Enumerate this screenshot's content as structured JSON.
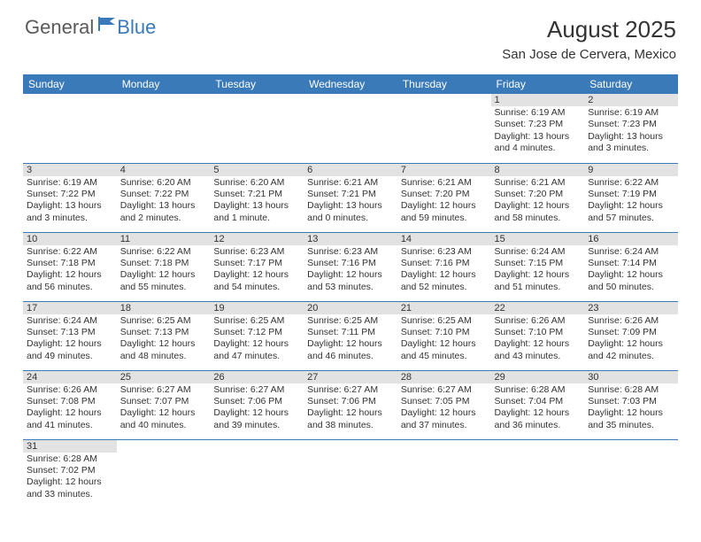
{
  "brand": {
    "general": "General",
    "blue": "Blue"
  },
  "title": "August 2025",
  "location": "San Jose de Cervera, Mexico",
  "colors": {
    "header_bg": "#3a7ab8",
    "header_text": "#ffffff",
    "daynum_bg": "#e2e2e2",
    "border": "#3a7ab8",
    "body_text": "#333333",
    "page_bg": "#ffffff",
    "logo_gray": "#5a5a5a",
    "logo_blue": "#3a7ab8"
  },
  "typography": {
    "title_fontsize": 26,
    "location_fontsize": 15,
    "weekday_fontsize": 12,
    "daynum_fontsize": 11,
    "body_fontsize": 10.5
  },
  "weekdays": [
    "Sunday",
    "Monday",
    "Tuesday",
    "Wednesday",
    "Thursday",
    "Friday",
    "Saturday"
  ],
  "weeks": [
    [
      null,
      null,
      null,
      null,
      null,
      {
        "n": "1",
        "sr": "Sunrise: 6:19 AM",
        "ss": "Sunset: 7:23 PM",
        "dl": "Daylight: 13 hours and 4 minutes."
      },
      {
        "n": "2",
        "sr": "Sunrise: 6:19 AM",
        "ss": "Sunset: 7:23 PM",
        "dl": "Daylight: 13 hours and 3 minutes."
      }
    ],
    [
      {
        "n": "3",
        "sr": "Sunrise: 6:19 AM",
        "ss": "Sunset: 7:22 PM",
        "dl": "Daylight: 13 hours and 3 minutes."
      },
      {
        "n": "4",
        "sr": "Sunrise: 6:20 AM",
        "ss": "Sunset: 7:22 PM",
        "dl": "Daylight: 13 hours and 2 minutes."
      },
      {
        "n": "5",
        "sr": "Sunrise: 6:20 AM",
        "ss": "Sunset: 7:21 PM",
        "dl": "Daylight: 13 hours and 1 minute."
      },
      {
        "n": "6",
        "sr": "Sunrise: 6:21 AM",
        "ss": "Sunset: 7:21 PM",
        "dl": "Daylight: 13 hours and 0 minutes."
      },
      {
        "n": "7",
        "sr": "Sunrise: 6:21 AM",
        "ss": "Sunset: 7:20 PM",
        "dl": "Daylight: 12 hours and 59 minutes."
      },
      {
        "n": "8",
        "sr": "Sunrise: 6:21 AM",
        "ss": "Sunset: 7:20 PM",
        "dl": "Daylight: 12 hours and 58 minutes."
      },
      {
        "n": "9",
        "sr": "Sunrise: 6:22 AM",
        "ss": "Sunset: 7:19 PM",
        "dl": "Daylight: 12 hours and 57 minutes."
      }
    ],
    [
      {
        "n": "10",
        "sr": "Sunrise: 6:22 AM",
        "ss": "Sunset: 7:18 PM",
        "dl": "Daylight: 12 hours and 56 minutes."
      },
      {
        "n": "11",
        "sr": "Sunrise: 6:22 AM",
        "ss": "Sunset: 7:18 PM",
        "dl": "Daylight: 12 hours and 55 minutes."
      },
      {
        "n": "12",
        "sr": "Sunrise: 6:23 AM",
        "ss": "Sunset: 7:17 PM",
        "dl": "Daylight: 12 hours and 54 minutes."
      },
      {
        "n": "13",
        "sr": "Sunrise: 6:23 AM",
        "ss": "Sunset: 7:16 PM",
        "dl": "Daylight: 12 hours and 53 minutes."
      },
      {
        "n": "14",
        "sr": "Sunrise: 6:23 AM",
        "ss": "Sunset: 7:16 PM",
        "dl": "Daylight: 12 hours and 52 minutes."
      },
      {
        "n": "15",
        "sr": "Sunrise: 6:24 AM",
        "ss": "Sunset: 7:15 PM",
        "dl": "Daylight: 12 hours and 51 minutes."
      },
      {
        "n": "16",
        "sr": "Sunrise: 6:24 AM",
        "ss": "Sunset: 7:14 PM",
        "dl": "Daylight: 12 hours and 50 minutes."
      }
    ],
    [
      {
        "n": "17",
        "sr": "Sunrise: 6:24 AM",
        "ss": "Sunset: 7:13 PM",
        "dl": "Daylight: 12 hours and 49 minutes."
      },
      {
        "n": "18",
        "sr": "Sunrise: 6:25 AM",
        "ss": "Sunset: 7:13 PM",
        "dl": "Daylight: 12 hours and 48 minutes."
      },
      {
        "n": "19",
        "sr": "Sunrise: 6:25 AM",
        "ss": "Sunset: 7:12 PM",
        "dl": "Daylight: 12 hours and 47 minutes."
      },
      {
        "n": "20",
        "sr": "Sunrise: 6:25 AM",
        "ss": "Sunset: 7:11 PM",
        "dl": "Daylight: 12 hours and 46 minutes."
      },
      {
        "n": "21",
        "sr": "Sunrise: 6:25 AM",
        "ss": "Sunset: 7:10 PM",
        "dl": "Daylight: 12 hours and 45 minutes."
      },
      {
        "n": "22",
        "sr": "Sunrise: 6:26 AM",
        "ss": "Sunset: 7:10 PM",
        "dl": "Daylight: 12 hours and 43 minutes."
      },
      {
        "n": "23",
        "sr": "Sunrise: 6:26 AM",
        "ss": "Sunset: 7:09 PM",
        "dl": "Daylight: 12 hours and 42 minutes."
      }
    ],
    [
      {
        "n": "24",
        "sr": "Sunrise: 6:26 AM",
        "ss": "Sunset: 7:08 PM",
        "dl": "Daylight: 12 hours and 41 minutes."
      },
      {
        "n": "25",
        "sr": "Sunrise: 6:27 AM",
        "ss": "Sunset: 7:07 PM",
        "dl": "Daylight: 12 hours and 40 minutes."
      },
      {
        "n": "26",
        "sr": "Sunrise: 6:27 AM",
        "ss": "Sunset: 7:06 PM",
        "dl": "Daylight: 12 hours and 39 minutes."
      },
      {
        "n": "27",
        "sr": "Sunrise: 6:27 AM",
        "ss": "Sunset: 7:06 PM",
        "dl": "Daylight: 12 hours and 38 minutes."
      },
      {
        "n": "28",
        "sr": "Sunrise: 6:27 AM",
        "ss": "Sunset: 7:05 PM",
        "dl": "Daylight: 12 hours and 37 minutes."
      },
      {
        "n": "29",
        "sr": "Sunrise: 6:28 AM",
        "ss": "Sunset: 7:04 PM",
        "dl": "Daylight: 12 hours and 36 minutes."
      },
      {
        "n": "30",
        "sr": "Sunrise: 6:28 AM",
        "ss": "Sunset: 7:03 PM",
        "dl": "Daylight: 12 hours and 35 minutes."
      }
    ],
    [
      {
        "n": "31",
        "sr": "Sunrise: 6:28 AM",
        "ss": "Sunset: 7:02 PM",
        "dl": "Daylight: 12 hours and 33 minutes."
      },
      null,
      null,
      null,
      null,
      null,
      null
    ]
  ]
}
